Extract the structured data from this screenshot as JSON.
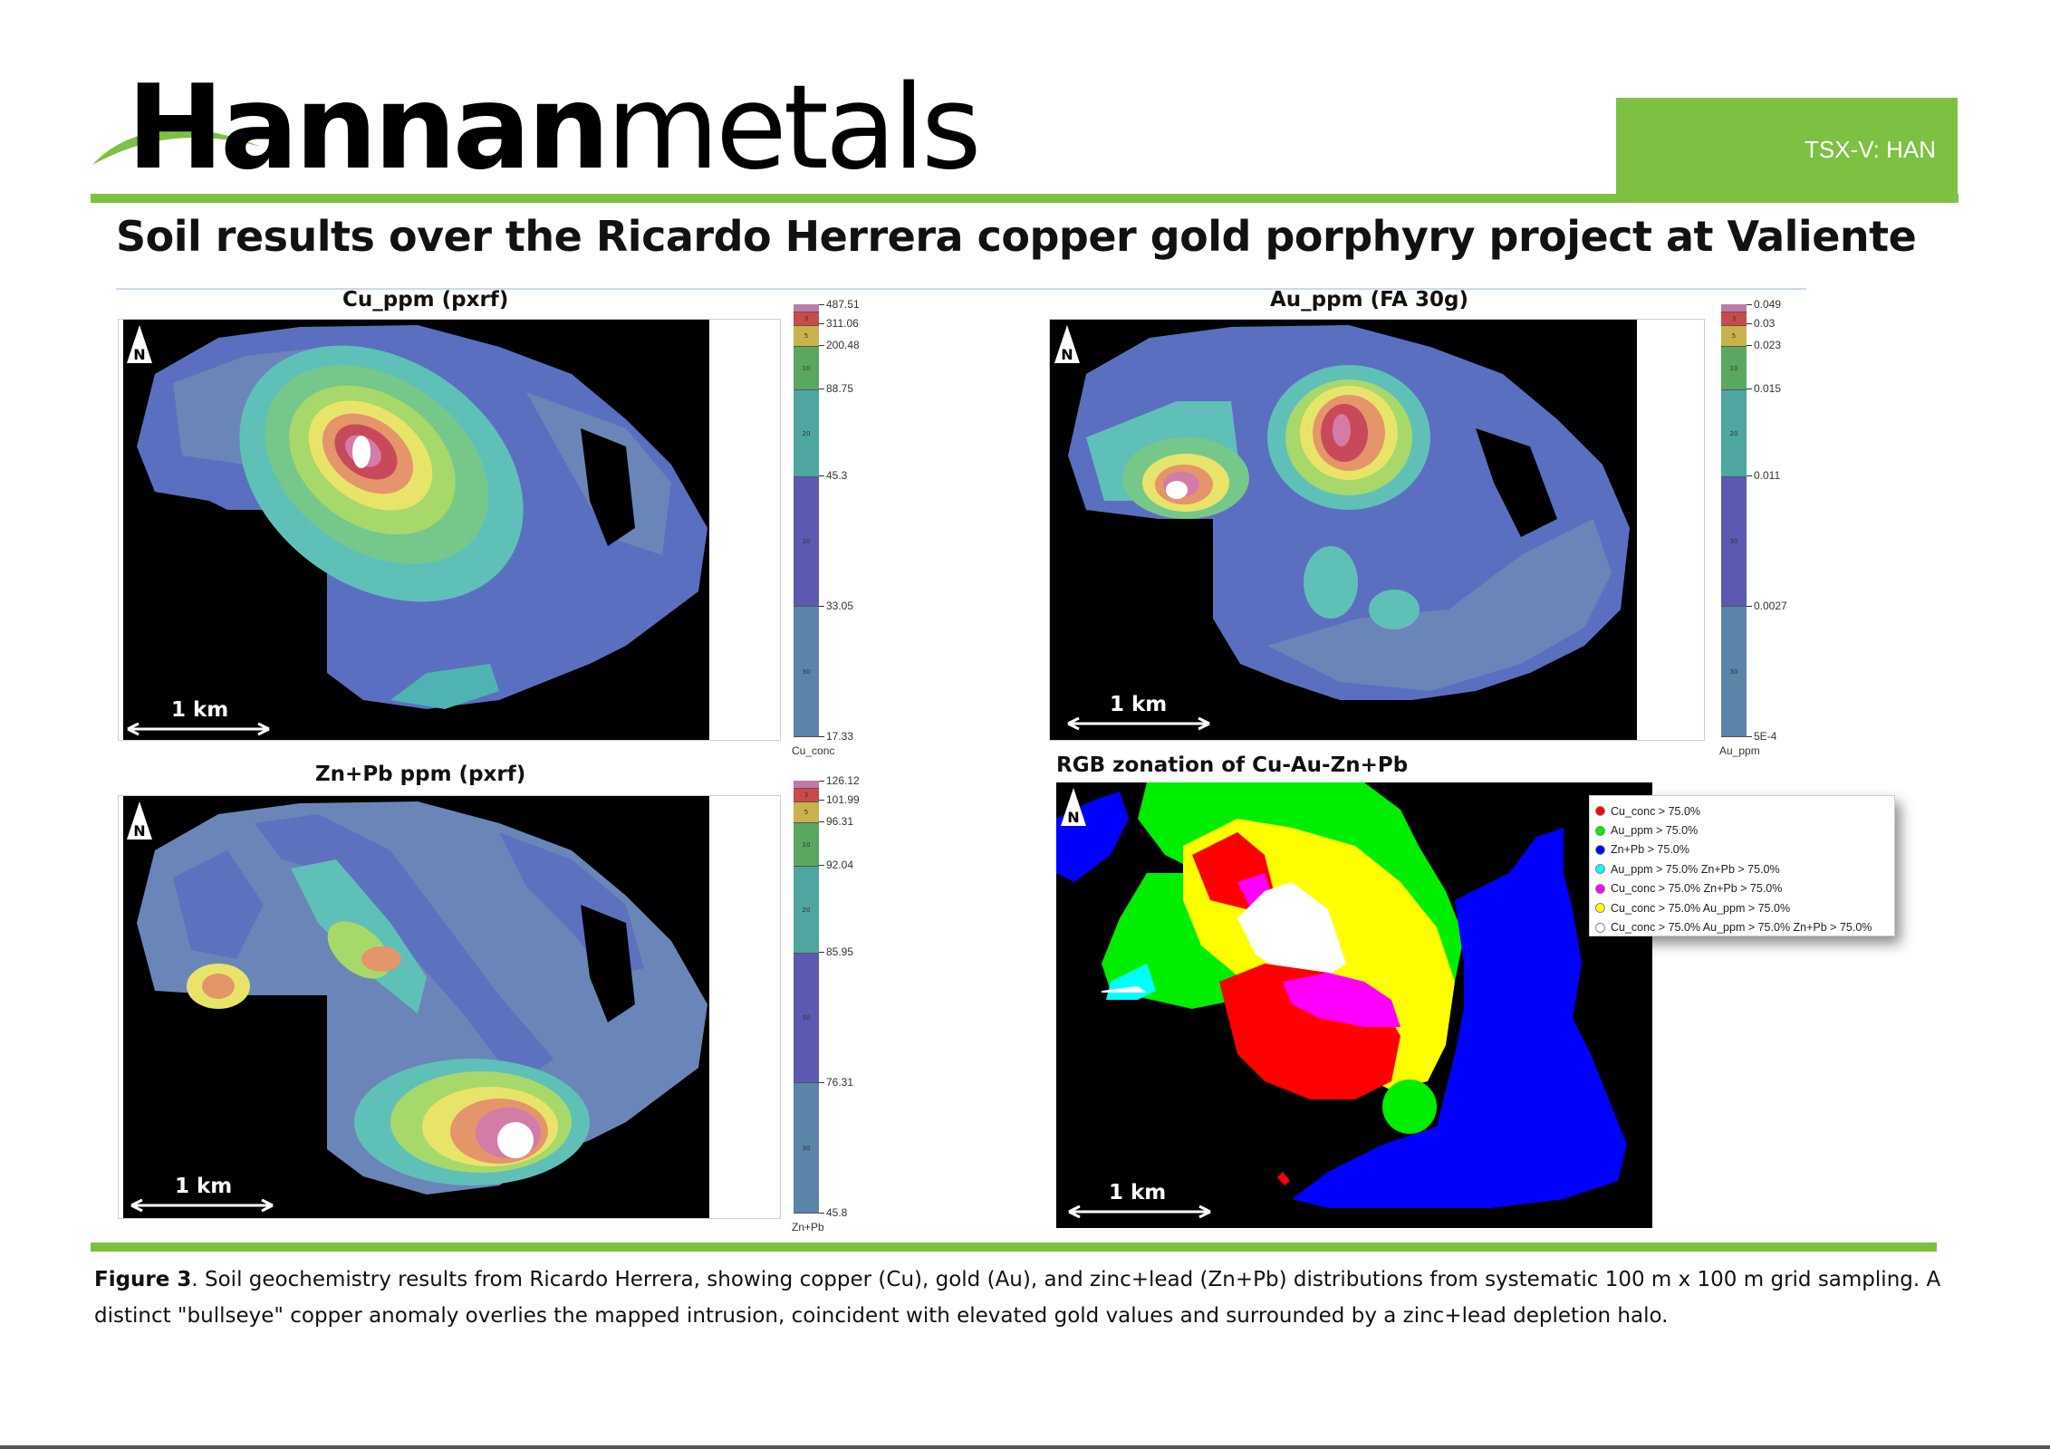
{
  "header": {
    "logo_dark": "Hannan",
    "logo_grey": "metals",
    "ticker": "TSX-V: HAN"
  },
  "title": "Soil results over the Ricardo Herrera copper gold porphyry project at Valiente",
  "panels": {
    "cu": {
      "title": "Cu_ppm (pxrf)",
      "scale": "1 km",
      "north": "N",
      "unit": "Cu_conc",
      "ticks": [
        "487.51",
        "311.06",
        "200.48",
        "88.75",
        "45.3",
        "33.05",
        "17.33"
      ]
    },
    "au": {
      "title": "Au_ppm (FA 30g)",
      "scale": "1 km",
      "north": "N",
      "unit": "Au_ppm",
      "ticks": [
        "0.049",
        "0.03",
        "0.023",
        "0.015",
        "0.011",
        "0.0027",
        "5E-4"
      ]
    },
    "zn": {
      "title": "Zn+Pb ppm (pxrf)",
      "scale": "1 km",
      "north": "N",
      "unit": "Zn+Pb",
      "ticks": [
        "126.12",
        "101.99",
        "96.31",
        "92.04",
        "85.95",
        "76.31",
        "45.8"
      ]
    },
    "rgb": {
      "title": "RGB zonation of Cu-Au-Zn+Pb",
      "scale": "1 km",
      "north": "N",
      "legend": [
        {
          "label": "Cu_conc > 75.0%",
          "color": "#ff0000"
        },
        {
          "label": "Au_ppm > 75.0%",
          "color": "#00ee00"
        },
        {
          "label": "Zn+Pb > 75.0%",
          "color": "#0000ff"
        },
        {
          "label": "Au_ppm > 75.0%  Zn+Pb > 75.0%",
          "color": "#00ffff"
        },
        {
          "label": "Cu_conc > 75.0%  Zn+Pb > 75.0%",
          "color": "#ff00ff"
        },
        {
          "label": "Cu_conc > 75.0%  Au_ppm > 75.0%",
          "color": "#ffff00"
        },
        {
          "label": "Cu_conc > 75.0%  Au_ppm > 75.0%  Zn+Pb > 75.0%",
          "color": "#ffffff"
        }
      ]
    }
  },
  "legend_band_labels": [
    "3",
    "5",
    "10",
    "20",
    "30",
    "30"
  ],
  "legend_colors": [
    "#c07aa8",
    "#c94a4a",
    "#c9b24a",
    "#5aa860",
    "#4fa6a0",
    "#5b5ab0",
    "#5a84a8"
  ],
  "caption": {
    "label": "Figure 3",
    "text": ". Soil geochemistry results from Ricardo Herrera, showing copper (Cu), gold (Au), and zinc+lead (Zn+Pb) distributions from systematic 100 m x 100 m grid sampling. A distinct \"bullseye\" copper anomaly overlies the mapped intrusion, coincident with elevated gold values and surrounded by a zinc+lead depletion halo."
  },
  "brand_colors": {
    "green": "#7dc142",
    "dark": "#231f20",
    "grey": "#808285"
  }
}
